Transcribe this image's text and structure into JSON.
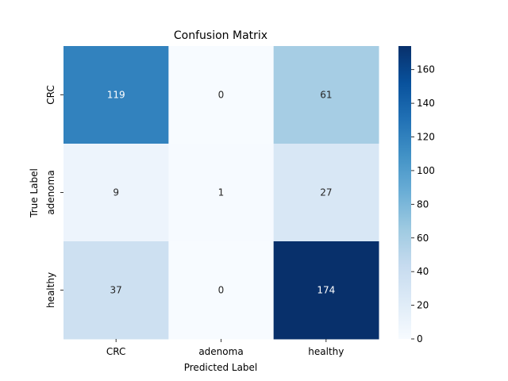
{
  "chart_data": {
    "type": "heatmap",
    "title": "Confusion Matrix",
    "xlabel": "Predicted Label",
    "ylabel": "True Label",
    "x_categories": [
      "CRC",
      "adenoma",
      "healthy"
    ],
    "y_categories": [
      "CRC",
      "adenoma",
      "healthy"
    ],
    "values": [
      [
        119,
        0,
        61
      ],
      [
        9,
        1,
        27
      ],
      [
        37,
        0,
        174
      ]
    ],
    "colormap": "Blues",
    "colormap_stops": [
      "#f7fbff",
      "#deebf7",
      "#c6dbef",
      "#9ecae1",
      "#6baed6",
      "#4292c6",
      "#2171b5",
      "#08519c",
      "#08306b"
    ],
    "colorbar_range": [
      0,
      174
    ],
    "colorbar_ticks": [
      "0",
      "20",
      "40",
      "60",
      "80",
      "100",
      "120",
      "140",
      "160"
    ],
    "grid": false,
    "legend": "colorbar-right"
  }
}
